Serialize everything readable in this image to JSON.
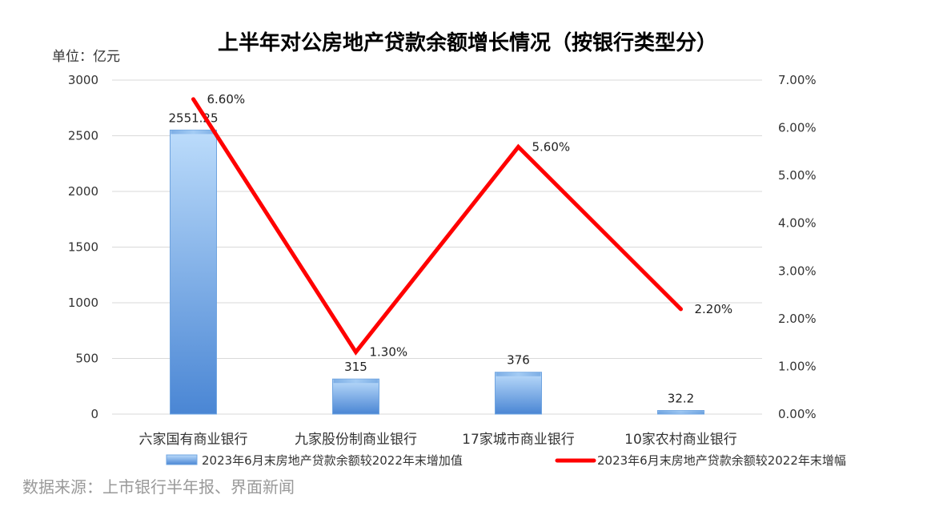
{
  "chart_data": {
    "type": "bar+line",
    "title": "上半年对公房地产贷款余额增长情况（按银行类型分）",
    "unit_label": "单位：亿元",
    "categories": [
      "六家国有商业银行",
      "九家股份制商业银行",
      "17家城市商业银行",
      "10家农村商业银行"
    ],
    "series": [
      {
        "name": "2023年6月末房地产贷款余额较2022年末增加值",
        "type": "bar",
        "axis": "left",
        "values": [
          2551.25,
          315,
          376,
          32.2
        ],
        "labels": [
          "2551.25",
          "315",
          "376",
          "32.2"
        ],
        "color": "#5b9bd5"
      },
      {
        "name": "2023年6月末房地产贷款余额较2022年末增幅",
        "type": "line",
        "axis": "right",
        "values": [
          6.6,
          1.3,
          5.6,
          2.2
        ],
        "labels": [
          "6.60%",
          "1.30%",
          "5.60%",
          "2.20%"
        ],
        "color": "#ff0000"
      }
    ],
    "left_axis": {
      "min": 0,
      "max": 3000,
      "ticks": [
        "0",
        "500",
        "1000",
        "1500",
        "2000",
        "2500",
        "3000"
      ]
    },
    "right_axis": {
      "min": 0,
      "max": 7,
      "ticks": [
        "0.00%",
        "1.00%",
        "2.00%",
        "3.00%",
        "4.00%",
        "5.00%",
        "6.00%",
        "7.00%"
      ]
    },
    "grid": true,
    "legend_position": "bottom"
  },
  "source_text": "数据来源：上市银行半年报、界面新闻"
}
